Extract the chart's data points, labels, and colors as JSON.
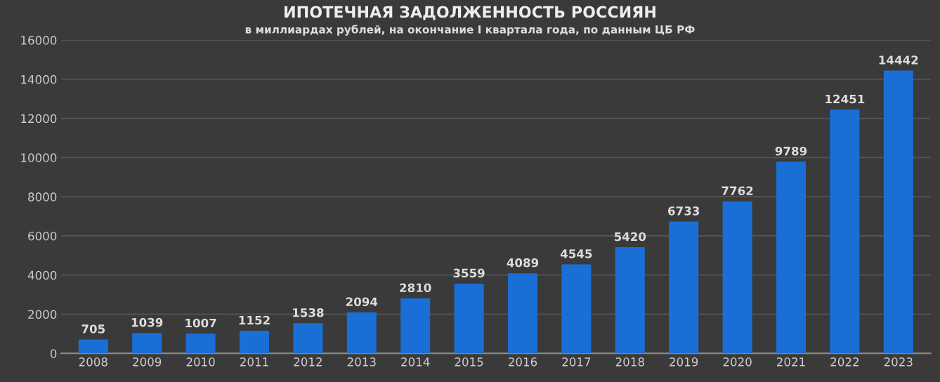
{
  "chart_data": {
    "type": "bar",
    "title": "ИПОТЕЧНАЯ ЗАДОЛЖЕННОСТЬ РОССИЯН",
    "subtitle": "в миллиардах рублей, на окончание I квартала года, по данным ЦБ РФ",
    "categories": [
      "2008",
      "2009",
      "2010",
      "2011",
      "2012",
      "2013",
      "2014",
      "2015",
      "2016",
      "2017",
      "2018",
      "2019",
      "2020",
      "2021",
      "2022",
      "2023"
    ],
    "values": [
      705,
      1039,
      1007,
      1152,
      1538,
      2094,
      2810,
      3559,
      4089,
      4545,
      5420,
      6733,
      7762,
      9789,
      12451,
      14442
    ],
    "color": "#1a6fd6",
    "ylim": [
      0,
      16000
    ],
    "yticks": [
      0,
      2000,
      4000,
      6000,
      8000,
      10000,
      12000,
      14000,
      16000
    ],
    "grid": "y",
    "data_labels": true
  }
}
